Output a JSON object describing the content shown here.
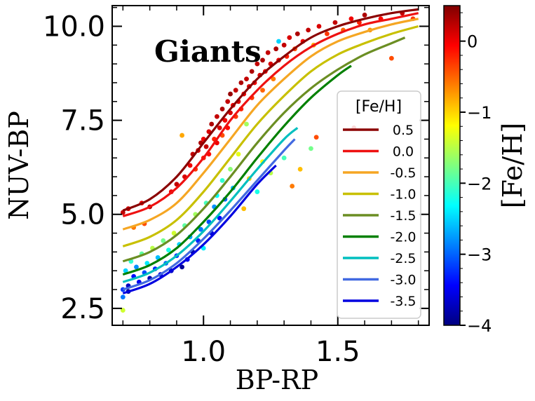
{
  "chart_data": {
    "type": "scatter",
    "title": "",
    "annotation": "Giants",
    "xlabel": "BP-RP",
    "ylabel": "NUV-BP",
    "xlim": [
      0.66,
      1.84
    ],
    "ylim": [
      2.05,
      10.55
    ],
    "x_ticks": [
      1.0,
      1.5
    ],
    "x_tick_labels": [
      "1.0",
      "1.5"
    ],
    "y_ticks": [
      2.5,
      5.0,
      7.5,
      10.0
    ],
    "y_tick_labels": [
      "2.5",
      "5.0",
      "7.5",
      "10.0"
    ],
    "grid": false,
    "legend": {
      "title": "[Fe/H]",
      "position": "lower-right",
      "entries": [
        "0.5",
        "0.0",
        "-0.5",
        "-1.0",
        "-1.5",
        "-2.0",
        "-2.5",
        "-3.0",
        "-3.5"
      ]
    },
    "series": [
      {
        "name": "0.5",
        "feh": 0.5,
        "color": "#8b0000",
        "x": [
          0.7,
          0.8,
          0.9,
          1.0,
          1.1,
          1.2,
          1.3,
          1.4,
          1.5,
          1.6,
          1.7,
          1.8
        ],
        "y": [
          5.1,
          5.4,
          6.0,
          6.9,
          7.8,
          8.6,
          9.2,
          9.7,
          10.0,
          10.2,
          10.35,
          10.45
        ]
      },
      {
        "name": "0.0",
        "feh": 0.0,
        "color": "#ee1111",
        "x": [
          0.7,
          0.8,
          0.9,
          1.0,
          1.1,
          1.2,
          1.3,
          1.4,
          1.5,
          1.6,
          1.7,
          1.8
        ],
        "y": [
          4.95,
          5.2,
          5.7,
          6.5,
          7.5,
          8.3,
          8.95,
          9.45,
          9.8,
          10.05,
          10.2,
          10.35
        ]
      },
      {
        "name": "-0.5",
        "feh": -0.5,
        "color": "#f5a623",
        "x": [
          0.7,
          0.8,
          0.9,
          1.0,
          1.1,
          1.2,
          1.3,
          1.4,
          1.5,
          1.6,
          1.7,
          1.8
        ],
        "y": [
          4.6,
          4.85,
          5.3,
          6.1,
          7.0,
          7.9,
          8.6,
          9.2,
          9.6,
          9.85,
          10.05,
          10.2
        ]
      },
      {
        "name": "-1.0",
        "feh": -1.0,
        "color": "#c8c000",
        "x": [
          0.7,
          0.8,
          0.9,
          1.0,
          1.1,
          1.2,
          1.3,
          1.4,
          1.5,
          1.6,
          1.7,
          1.8
        ],
        "y": [
          4.15,
          4.4,
          4.85,
          5.6,
          6.5,
          7.4,
          8.15,
          8.8,
          9.25,
          9.55,
          9.8,
          10.0
        ]
      },
      {
        "name": "-1.5",
        "feh": -1.5,
        "color": "#6b8e23",
        "x": [
          0.7,
          0.8,
          0.9,
          1.0,
          1.1,
          1.2,
          1.3,
          1.4,
          1.5,
          1.6,
          1.7,
          1.75
        ],
        "y": [
          3.75,
          4.0,
          4.45,
          5.15,
          6.0,
          6.9,
          7.7,
          8.35,
          8.85,
          9.25,
          9.55,
          9.7
        ]
      },
      {
        "name": "-2.0",
        "feh": -2.0,
        "color": "#008000",
        "x": [
          0.7,
          0.8,
          0.9,
          1.0,
          1.1,
          1.2,
          1.3,
          1.4,
          1.5,
          1.55
        ],
        "y": [
          3.4,
          3.65,
          4.1,
          4.8,
          5.6,
          6.5,
          7.35,
          8.1,
          8.7,
          8.95
        ]
      },
      {
        "name": "-2.5",
        "feh": -2.5,
        "color": "#00bfbf",
        "x": [
          0.7,
          0.8,
          0.9,
          1.0,
          1.1,
          1.2,
          1.3,
          1.35
        ],
        "y": [
          3.2,
          3.45,
          3.9,
          4.55,
          5.35,
          6.2,
          7.0,
          7.3
        ]
      },
      {
        "name": "-3.0",
        "feh": -3.0,
        "color": "#4169e1",
        "x": [
          0.7,
          0.8,
          0.9,
          1.0,
          1.1,
          1.2,
          1.3,
          1.34
        ],
        "y": [
          3.0,
          3.25,
          3.7,
          4.35,
          5.1,
          5.9,
          6.7,
          7.0
        ]
      },
      {
        "name": "-3.5",
        "feh": -3.5,
        "color": "#0000e0",
        "x": [
          0.7,
          0.8,
          0.9,
          1.0,
          1.1,
          1.2,
          1.27
        ],
        "y": [
          2.9,
          3.15,
          3.6,
          4.2,
          4.95,
          5.8,
          6.3
        ]
      }
    ],
    "scatter_points": [
      {
        "x": 0.7,
        "y": 5.05,
        "feh": 0.2
      },
      {
        "x": 0.72,
        "y": 5.15,
        "feh": 0.1
      },
      {
        "x": 0.77,
        "y": 5.3,
        "feh": 0.0
      },
      {
        "x": 0.8,
        "y": 5.2,
        "feh": 0.3
      },
      {
        "x": 0.74,
        "y": 4.65,
        "feh": -0.6
      },
      {
        "x": 0.78,
        "y": 4.75,
        "feh": -0.4
      },
      {
        "x": 0.88,
        "y": 5.6,
        "feh": 0.0
      },
      {
        "x": 0.9,
        "y": 5.8,
        "feh": 0.2
      },
      {
        "x": 0.92,
        "y": 7.1,
        "feh": -0.8
      },
      {
        "x": 0.93,
        "y": 6.0,
        "feh": 0.1
      },
      {
        "x": 0.95,
        "y": 6.3,
        "feh": 0.0
      },
      {
        "x": 0.96,
        "y": 6.6,
        "feh": 0.2
      },
      {
        "x": 0.98,
        "y": 6.7,
        "feh": 0.1
      },
      {
        "x": 0.97,
        "y": 6.2,
        "feh": -0.3
      },
      {
        "x": 0.99,
        "y": 6.9,
        "feh": 0.3
      },
      {
        "x": 1.0,
        "y": 7.0,
        "feh": 0.0
      },
      {
        "x": 1.0,
        "y": 6.5,
        "feh": -0.2
      },
      {
        "x": 1.01,
        "y": 6.8,
        "feh": 0.2
      },
      {
        "x": 1.02,
        "y": 7.2,
        "feh": 0.1
      },
      {
        "x": 1.02,
        "y": 6.6,
        "feh": -0.1
      },
      {
        "x": 1.03,
        "y": 7.4,
        "feh": 0.3
      },
      {
        "x": 1.04,
        "y": 7.0,
        "feh": -0.2
      },
      {
        "x": 1.05,
        "y": 7.6,
        "feh": 0.2
      },
      {
        "x": 1.05,
        "y": 6.9,
        "feh": 0.0
      },
      {
        "x": 1.06,
        "y": 7.3,
        "feh": 0.1
      },
      {
        "x": 1.07,
        "y": 7.8,
        "feh": 0.3
      },
      {
        "x": 1.07,
        "y": 7.1,
        "feh": -0.4
      },
      {
        "x": 1.08,
        "y": 7.5,
        "feh": 0.0
      },
      {
        "x": 1.09,
        "y": 8.0,
        "feh": 0.2
      },
      {
        "x": 1.09,
        "y": 7.3,
        "feh": -0.1
      },
      {
        "x": 1.1,
        "y": 7.7,
        "feh": 0.1
      },
      {
        "x": 1.1,
        "y": 8.2,
        "feh": 0.4
      },
      {
        "x": 1.11,
        "y": 7.9,
        "feh": 0.0
      },
      {
        "x": 1.12,
        "y": 7.6,
        "feh": -0.3
      },
      {
        "x": 1.12,
        "y": 8.3,
        "feh": 0.2
      },
      {
        "x": 1.13,
        "y": 8.0,
        "feh": 0.1
      },
      {
        "x": 1.14,
        "y": 8.5,
        "feh": 0.3
      },
      {
        "x": 1.14,
        "y": 7.8,
        "feh": -0.2
      },
      {
        "x": 1.15,
        "y": 8.2,
        "feh": 0.0
      },
      {
        "x": 1.16,
        "y": 8.6,
        "feh": 0.2
      },
      {
        "x": 1.16,
        "y": 7.4,
        "feh": -1.6
      },
      {
        "x": 1.17,
        "y": 8.4,
        "feh": 0.1
      },
      {
        "x": 1.18,
        "y": 8.8,
        "feh": 0.3
      },
      {
        "x": 1.18,
        "y": 8.1,
        "feh": -0.3
      },
      {
        "x": 1.19,
        "y": 8.5,
        "feh": 0.0
      },
      {
        "x": 1.2,
        "y": 9.0,
        "feh": 0.2
      },
      {
        "x": 1.21,
        "y": 8.7,
        "feh": 0.1
      },
      {
        "x": 1.22,
        "y": 8.3,
        "feh": -0.5
      },
      {
        "x": 1.22,
        "y": 9.1,
        "feh": 0.3
      },
      {
        "x": 1.23,
        "y": 8.8,
        "feh": 0.0
      },
      {
        "x": 1.24,
        "y": 9.3,
        "feh": 0.2
      },
      {
        "x": 1.25,
        "y": 9.0,
        "feh": 0.1
      },
      {
        "x": 1.26,
        "y": 8.6,
        "feh": -0.6
      },
      {
        "x": 1.27,
        "y": 9.4,
        "feh": 0.3
      },
      {
        "x": 1.28,
        "y": 9.1,
        "feh": 0.0
      },
      {
        "x": 1.28,
        "y": 9.6,
        "feh": -2.5
      },
      {
        "x": 1.3,
        "y": 9.5,
        "feh": 0.2
      },
      {
        "x": 1.31,
        "y": 9.2,
        "feh": -0.2
      },
      {
        "x": 1.32,
        "y": 9.7,
        "feh": 0.1
      },
      {
        "x": 1.34,
        "y": 9.4,
        "feh": -0.4
      },
      {
        "x": 1.35,
        "y": 9.8,
        "feh": 0.3
      },
      {
        "x": 1.37,
        "y": 9.6,
        "feh": 0.0
      },
      {
        "x": 1.39,
        "y": 9.9,
        "feh": 0.2
      },
      {
        "x": 1.41,
        "y": 9.5,
        "feh": -0.8
      },
      {
        "x": 1.43,
        "y": 10.0,
        "feh": 0.1
      },
      {
        "x": 1.46,
        "y": 9.8,
        "feh": -0.3
      },
      {
        "x": 1.49,
        "y": 10.1,
        "feh": 0.2
      },
      {
        "x": 1.52,
        "y": 9.9,
        "feh": -0.5
      },
      {
        "x": 1.55,
        "y": 10.2,
        "feh": 0.0
      },
      {
        "x": 1.58,
        "y": 10.1,
        "feh": -0.2
      },
      {
        "x": 1.6,
        "y": 10.3,
        "feh": 0.3
      },
      {
        "x": 1.62,
        "y": 9.9,
        "feh": -0.7
      },
      {
        "x": 1.66,
        "y": 10.2,
        "feh": -0.1
      },
      {
        "x": 1.7,
        "y": 9.15,
        "feh": -0.4
      },
      {
        "x": 1.74,
        "y": 10.35,
        "feh": 0.2
      },
      {
        "x": 1.78,
        "y": 10.2,
        "feh": -0.3
      },
      {
        "x": 1.56,
        "y": 7.3,
        "feh": 0.1
      },
      {
        "x": 1.42,
        "y": 7.05,
        "feh": -0.4
      },
      {
        "x": 1.4,
        "y": 6.75,
        "feh": -1.8
      },
      {
        "x": 1.36,
        "y": 6.2,
        "feh": -0.9
      },
      {
        "x": 1.33,
        "y": 5.75,
        "feh": -0.6
      },
      {
        "x": 1.3,
        "y": 6.5,
        "feh": -2.0
      },
      {
        "x": 1.25,
        "y": 6.1,
        "feh": -1.5
      },
      {
        "x": 1.22,
        "y": 6.4,
        "feh": -1.2
      },
      {
        "x": 1.2,
        "y": 5.6,
        "feh": -2.2
      },
      {
        "x": 1.17,
        "y": 5.95,
        "feh": -1.0
      },
      {
        "x": 1.15,
        "y": 5.15,
        "feh": -0.9
      },
      {
        "x": 1.13,
        "y": 6.6,
        "feh": -1.3
      },
      {
        "x": 1.11,
        "y": 5.7,
        "feh": -2.6
      },
      {
        "x": 1.1,
        "y": 6.2,
        "feh": -1.7
      },
      {
        "x": 1.08,
        "y": 5.4,
        "feh": -3.0
      },
      {
        "x": 1.07,
        "y": 5.9,
        "feh": -2.1
      },
      {
        "x": 1.06,
        "y": 4.9,
        "feh": -3.4
      },
      {
        "x": 1.05,
        "y": 5.5,
        "feh": -2.3
      },
      {
        "x": 1.04,
        "y": 5.2,
        "feh": -2.8
      },
      {
        "x": 1.03,
        "y": 4.5,
        "feh": -3.6
      },
      {
        "x": 1.02,
        "y": 4.8,
        "feh": -3.1
      },
      {
        "x": 1.01,
        "y": 5.3,
        "feh": -2.0
      },
      {
        "x": 1.0,
        "y": 4.1,
        "feh": -2.4
      },
      {
        "x": 0.99,
        "y": 4.6,
        "feh": -2.9
      },
      {
        "x": 0.98,
        "y": 4.3,
        "feh": -3.3
      },
      {
        "x": 0.97,
        "y": 5.0,
        "feh": -1.6
      },
      {
        "x": 0.96,
        "y": 4.0,
        "feh": -3.8
      },
      {
        "x": 0.95,
        "y": 4.4,
        "feh": -2.7
      },
      {
        "x": 0.94,
        "y": 3.8,
        "feh": -3.5
      },
      {
        "x": 0.93,
        "y": 4.7,
        "feh": -1.9
      },
      {
        "x": 0.92,
        "y": 3.6,
        "feh": -3.9
      },
      {
        "x": 0.91,
        "y": 4.2,
        "feh": -2.5
      },
      {
        "x": 0.9,
        "y": 3.9,
        "feh": -3.2
      },
      {
        "x": 0.89,
        "y": 4.5,
        "feh": -1.4
      },
      {
        "x": 0.88,
        "y": 3.5,
        "feh": -3.7
      },
      {
        "x": 0.87,
        "y": 4.05,
        "feh": -2.2
      },
      {
        "x": 0.86,
        "y": 3.7,
        "feh": -3.0
      },
      {
        "x": 0.85,
        "y": 4.3,
        "feh": -1.8
      },
      {
        "x": 0.84,
        "y": 3.4,
        "feh": -3.6
      },
      {
        "x": 0.83,
        "y": 3.85,
        "feh": -2.6
      },
      {
        "x": 0.82,
        "y": 3.55,
        "feh": -3.3
      },
      {
        "x": 0.81,
        "y": 4.1,
        "feh": -1.5
      },
      {
        "x": 0.8,
        "y": 3.3,
        "feh": -3.8
      },
      {
        "x": 0.79,
        "y": 3.7,
        "feh": -2.4
      },
      {
        "x": 0.78,
        "y": 3.45,
        "feh": -3.1
      },
      {
        "x": 0.77,
        "y": 3.95,
        "feh": -1.9
      },
      {
        "x": 0.76,
        "y": 3.2,
        "feh": -3.5
      },
      {
        "x": 0.75,
        "y": 3.6,
        "feh": -2.8
      },
      {
        "x": 0.74,
        "y": 3.35,
        "feh": -3.4
      },
      {
        "x": 0.73,
        "y": 3.75,
        "feh": -2.1
      },
      {
        "x": 0.72,
        "y": 3.1,
        "feh": -3.7
      },
      {
        "x": 0.71,
        "y": 3.5,
        "feh": -2.5
      },
      {
        "x": 0.7,
        "y": 3.0,
        "feh": -3.2
      },
      {
        "x": 0.7,
        "y": 2.45,
        "feh": -1.4
      },
      {
        "x": 0.7,
        "y": 2.8,
        "feh": -2.9
      },
      {
        "x": 0.72,
        "y": 2.95,
        "feh": -3.9
      }
    ],
    "colorbar": {
      "label": "[Fe/H]",
      "range": [
        -4,
        0.5
      ],
      "ticks": [
        0,
        -1,
        -2,
        -3,
        -4
      ],
      "tick_labels": [
        "0",
        "−1",
        "−2",
        "−3",
        "−4"
      ],
      "colormap": "jet"
    }
  }
}
